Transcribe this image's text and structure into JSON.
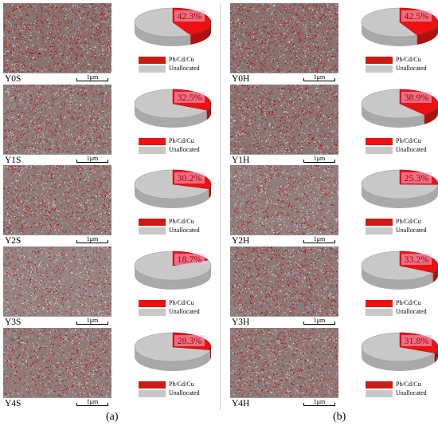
{
  "colors": {
    "allocated": "#ee1111",
    "allocated_legend": "#cc1a14",
    "unallocated": "#c8c8c8",
    "pie_side": "#a9a9a9",
    "pie_side_red": "#b01010",
    "label_highlight": "#f6b8e0"
  },
  "captions": {
    "left": "(a)",
    "right": "(b)"
  },
  "chart_data": [
    {
      "type": "pie",
      "sample": "Y0S",
      "scale": "1μm",
      "labels": [
        "Pb/Cd/Cu",
        "Unallocated"
      ],
      "values": [
        42.3,
        57.7
      ],
      "label_text": "42.3%"
    },
    {
      "type": "pie",
      "sample": "Y1S",
      "scale": "1μm",
      "labels": [
        "Pb/Cd/Cu",
        "Unallocated"
      ],
      "values": [
        32.5,
        67.5
      ],
      "label_text": "32.5%"
    },
    {
      "type": "pie",
      "sample": "Y2S",
      "scale": "1μm",
      "labels": [
        "Pb/Cd/Cu",
        "Unallocated"
      ],
      "values": [
        30.2,
        69.8
      ],
      "label_text": "30.2%"
    },
    {
      "type": "pie",
      "sample": "Y3S",
      "scale": "1μm",
      "labels": [
        "Pb/Cd/Cu",
        "Unallocated"
      ],
      "values": [
        18.7,
        81.3
      ],
      "label_text": "18.7%"
    },
    {
      "type": "pie",
      "sample": "Y4S",
      "scale": "1μm",
      "labels": [
        "Pb/Cd/Cu",
        "Unallocated"
      ],
      "values": [
        28.3,
        71.7
      ],
      "label_text": "28.3%"
    },
    {
      "type": "pie",
      "sample": "Y0H",
      "scale": "1μm",
      "labels": [
        "Pb/Cd/Cu",
        "Unallocated"
      ],
      "values": [
        42.5,
        57.5
      ],
      "label_text": "42.5%"
    },
    {
      "type": "pie",
      "sample": "Y1H",
      "scale": "1μm",
      "labels": [
        "Pb/Cd/Cu",
        "Unallocated"
      ],
      "values": [
        38.9,
        61.1
      ],
      "label_text": "38.9%"
    },
    {
      "type": "pie",
      "sample": "Y2H",
      "scale": "1μm",
      "labels": [
        "Pb/Cd/Cu",
        "Unallocated"
      ],
      "values": [
        25.3,
        74.7
      ],
      "label_text": "25.3%"
    },
    {
      "type": "pie",
      "sample": "Y3H",
      "scale": "1μm",
      "labels": [
        "Pb/Cd/Cu",
        "Unallocated"
      ],
      "values": [
        33.2,
        66.8
      ],
      "label_text": "33.2%"
    },
    {
      "type": "pie",
      "sample": "Y4H",
      "scale": "1μm",
      "labels": [
        "Pb/Cd/Cu",
        "Unallocated"
      ],
      "values": [
        31.8,
        68.2
      ],
      "label_text": "31.8%"
    }
  ]
}
